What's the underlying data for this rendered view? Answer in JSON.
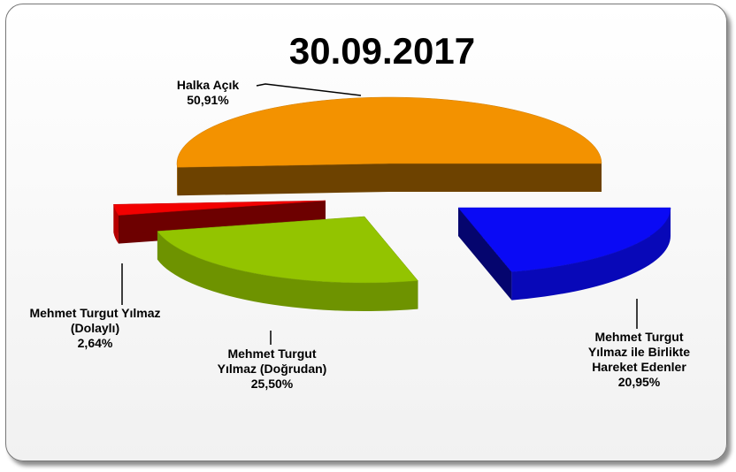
{
  "chart_data": {
    "type": "pie3d",
    "title": "30.09.2017",
    "categories": [
      "Mehmet Turgut Yılmaz ile Birlikte Hareket Edenler",
      "Mehmet Turgut Yılmaz (Doğrudan)",
      "Mehmet Turgut Yılmaz (Dolaylı)",
      "Halka Açık"
    ],
    "values": [
      20.95,
      25.5,
      2.64,
      50.91
    ],
    "value_labels": [
      "20,95%",
      "25,50%",
      "2,64%",
      "50,91%"
    ],
    "colors": [
      "#0a0af5",
      "#93c400",
      "#f20000",
      "#f39200"
    ]
  }
}
